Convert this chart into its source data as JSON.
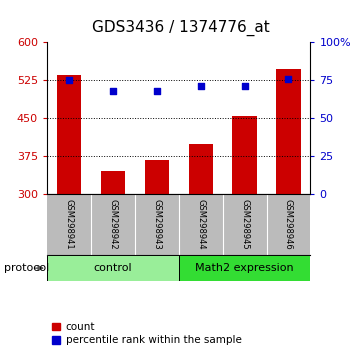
{
  "title": "GDS3436 / 1374776_at",
  "samples": [
    "GSM298941",
    "GSM298942",
    "GSM298943",
    "GSM298944",
    "GSM298945",
    "GSM298946"
  ],
  "counts": [
    535,
    345,
    368,
    400,
    455,
    548
  ],
  "percentiles": [
    75,
    68,
    68,
    71,
    71,
    76
  ],
  "ylim_left": [
    300,
    600
  ],
  "ylim_right": [
    0,
    100
  ],
  "yticks_left": [
    300,
    375,
    450,
    525,
    600
  ],
  "yticks_right": [
    0,
    25,
    50,
    75,
    100
  ],
  "ytick_labels_right": [
    "0",
    "25",
    "50",
    "75",
    "100%"
  ],
  "bar_color": "#cc0000",
  "dot_color": "#0000cc",
  "bar_width": 0.55,
  "groups": [
    {
      "label": "control",
      "indices": [
        0,
        1,
        2
      ],
      "color": "#99ee99"
    },
    {
      "label": "Math2 expression",
      "indices": [
        3,
        4,
        5
      ],
      "color": "#33dd33"
    }
  ],
  "legend_count_label": "count",
  "legend_pct_label": "percentile rank within the sample",
  "protocol_label": "protocol",
  "label_area_bg": "#bbbbbb",
  "title_fontsize": 11,
  "tick_fontsize": 8,
  "sample_fontsize": 6,
  "group_fontsize": 8,
  "legend_fontsize": 7.5
}
